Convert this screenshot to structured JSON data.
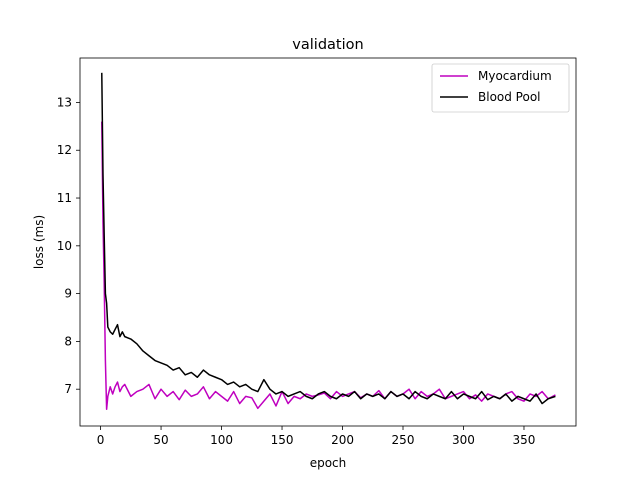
{
  "chart_data": {
    "type": "line",
    "title": "validation",
    "xlabel": "epoch",
    "ylabel": "loss (ms)",
    "xlim": [
      -17,
      393
    ],
    "ylim": [
      6.23,
      13.93
    ],
    "xticks": [
      0,
      50,
      100,
      150,
      200,
      250,
      300,
      350
    ],
    "yticks": [
      7,
      8,
      9,
      10,
      11,
      12,
      13
    ],
    "grid": false,
    "legend_position": "top-right",
    "series": [
      {
        "name": "Myocardium",
        "color": "#bf00bf",
        "x": [
          1,
          2,
          3,
          4,
          5,
          6,
          8,
          10,
          12,
          14,
          16,
          18,
          20,
          25,
          30,
          35,
          40,
          45,
          50,
          55,
          60,
          65,
          70,
          75,
          80,
          85,
          90,
          95,
          100,
          105,
          110,
          115,
          120,
          125,
          130,
          135,
          140,
          145,
          150,
          155,
          160,
          165,
          170,
          175,
          180,
          185,
          190,
          195,
          200,
          205,
          210,
          215,
          220,
          225,
          230,
          235,
          240,
          245,
          250,
          255,
          260,
          265,
          270,
          275,
          280,
          285,
          290,
          295,
          300,
          305,
          310,
          315,
          320,
          325,
          330,
          335,
          340,
          345,
          350,
          355,
          360,
          365,
          370,
          376
        ],
        "y": [
          12.6,
          10.5,
          9.2,
          7.6,
          6.58,
          6.85,
          7.05,
          6.9,
          7.05,
          7.15,
          6.95,
          7.05,
          7.1,
          6.85,
          6.95,
          7.0,
          7.1,
          6.8,
          7.0,
          6.85,
          6.95,
          6.78,
          6.98,
          6.85,
          6.9,
          7.05,
          6.8,
          6.95,
          6.85,
          6.75,
          6.95,
          6.7,
          6.85,
          6.82,
          6.6,
          6.75,
          6.9,
          6.65,
          6.95,
          6.7,
          6.85,
          6.8,
          6.9,
          6.85,
          6.88,
          6.92,
          6.8,
          6.95,
          6.85,
          6.9,
          6.95,
          6.82,
          6.9,
          6.85,
          6.97,
          6.8,
          6.95,
          6.85,
          6.9,
          7.0,
          6.8,
          6.95,
          6.85,
          6.9,
          7.0,
          6.8,
          6.85,
          6.9,
          6.95,
          6.8,
          6.88,
          6.75,
          6.9,
          6.85,
          6.8,
          6.9,
          6.95,
          6.8,
          6.75,
          6.9,
          6.85,
          6.95,
          6.8,
          6.88
        ]
      },
      {
        "name": "Blood Pool",
        "color": "#000000",
        "x": [
          1,
          2,
          3,
          4,
          5,
          6,
          7,
          8,
          10,
          12,
          14,
          16,
          18,
          20,
          25,
          30,
          35,
          40,
          45,
          50,
          55,
          60,
          65,
          70,
          75,
          80,
          85,
          90,
          95,
          100,
          105,
          110,
          115,
          120,
          125,
          130,
          135,
          140,
          145,
          150,
          155,
          160,
          165,
          170,
          175,
          180,
          185,
          190,
          195,
          200,
          205,
          210,
          215,
          220,
          225,
          230,
          235,
          240,
          245,
          250,
          255,
          260,
          265,
          270,
          275,
          280,
          285,
          290,
          295,
          300,
          305,
          310,
          315,
          320,
          325,
          330,
          335,
          340,
          345,
          350,
          355,
          360,
          365,
          370,
          376
        ],
        "y": [
          13.62,
          11.5,
          10.2,
          9.0,
          8.8,
          8.3,
          8.25,
          8.2,
          8.15,
          8.25,
          8.35,
          8.1,
          8.2,
          8.1,
          8.05,
          7.95,
          7.8,
          7.7,
          7.6,
          7.55,
          7.5,
          7.4,
          7.45,
          7.3,
          7.35,
          7.25,
          7.4,
          7.3,
          7.25,
          7.2,
          7.1,
          7.15,
          7.05,
          7.1,
          7.0,
          6.95,
          7.2,
          7.0,
          6.9,
          6.95,
          6.85,
          6.9,
          6.95,
          6.85,
          6.8,
          6.9,
          6.95,
          6.85,
          6.8,
          6.9,
          6.85,
          6.95,
          6.8,
          6.9,
          6.85,
          6.9,
          6.8,
          6.95,
          6.85,
          6.9,
          6.8,
          6.95,
          6.85,
          6.8,
          6.9,
          6.85,
          6.8,
          6.95,
          6.8,
          6.9,
          6.85,
          6.8,
          6.95,
          6.78,
          6.85,
          6.8,
          6.9,
          6.75,
          6.85,
          6.8,
          6.75,
          6.9,
          6.7,
          6.8,
          6.85
        ]
      }
    ]
  }
}
